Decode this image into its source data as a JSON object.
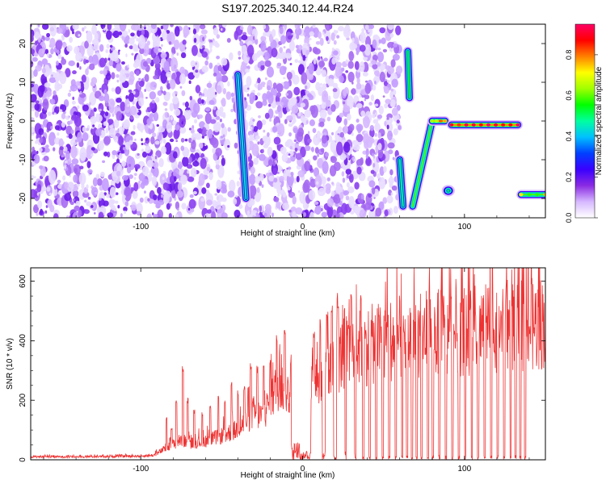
{
  "figure_title": "S197.2025.340.12.44.R24",
  "chart_data": [
    {
      "type": "heatmap",
      "title": "S197.2025.340.12.44.R24",
      "xlabel": "Height of straight line (km)",
      "ylabel": "Frequency (Hz)",
      "xlim": [
        -168,
        150
      ],
      "ylim": [
        -25,
        25
      ],
      "x_ticks": [
        -100,
        0,
        100
      ],
      "y_ticks": [
        -20,
        -10,
        0,
        10,
        20
      ],
      "colorbar": {
        "label": "Normalized spectral amplitude",
        "range": [
          0,
          0.95
        ],
        "ticks": [
          0.0,
          0.2,
          0.4,
          0.6,
          0.8
        ],
        "colors": [
          "#ffffff",
          "#d6b8ff",
          "#8a2be2",
          "#3a00ff",
          "#0040ff",
          "#00c0ff",
          "#00ffa0",
          "#00ff00",
          "#a0ff00",
          "#ffff00",
          "#ff8000",
          "#ff0000",
          "#ff0066"
        ]
      },
      "noise_region_x": [
        -168,
        60
      ],
      "features": [
        {
          "kind": "streak",
          "x": [
            -40,
            -35
          ],
          "y": [
            12,
            -20
          ],
          "amplitude": 0.25
        },
        {
          "kind": "streak",
          "x": [
            60,
            62
          ],
          "y": [
            -10,
            -22
          ],
          "amplitude": 0.3
        },
        {
          "kind": "streak",
          "x": [
            65,
            66
          ],
          "y": [
            18,
            6
          ],
          "amplitude": 0.35
        },
        {
          "kind": "streak",
          "x": [
            68,
            80
          ],
          "y": [
            -22,
            0
          ],
          "amplitude": 0.4
        },
        {
          "kind": "band",
          "x": [
            80,
            88
          ],
          "y": [
            0,
            0
          ],
          "amplitude": 0.45
        },
        {
          "kind": "blob",
          "x": [
            90,
            90
          ],
          "y": [
            -18,
            -18
          ],
          "amplitude": 0.35
        },
        {
          "kind": "band",
          "x": [
            92,
            133
          ],
          "y": [
            -1,
            -1
          ],
          "amplitude": 0.6
        },
        {
          "kind": "band",
          "x": [
            135,
            150
          ],
          "y": [
            -19,
            -19
          ],
          "amplitude": 0.4
        }
      ]
    },
    {
      "type": "line",
      "xlabel": "Height of straight line (km)",
      "ylabel": "SNR (10 * v/v)",
      "xlim": [
        -168,
        150
      ],
      "ylim": [
        0,
        645
      ],
      "x_ticks": [
        -100,
        0,
        100
      ],
      "y_ticks": [
        0,
        200,
        400,
        600
      ],
      "series": [
        {
          "color": "#ee3333",
          "envelope_x": [
            -168,
            -140,
            -100,
            -92,
            -86,
            -80,
            -75,
            -70,
            -60,
            -50,
            -40,
            -30,
            -25,
            -20,
            -15,
            -12,
            -8,
            -5,
            -2,
            0,
            5,
            10,
            20,
            25,
            30,
            40,
            50,
            60,
            70,
            80,
            90,
            100,
            110,
            120,
            130,
            140,
            150
          ],
          "envelope_y": [
            12,
            12,
            15,
            18,
            40,
            60,
            80,
            65,
            75,
            95,
            120,
            190,
            170,
            230,
            300,
            280,
            260,
            200,
            170,
            230,
            300,
            300,
            380,
            420,
            430,
            450,
            470,
            480,
            490,
            500,
            500,
            510,
            515,
            525,
            530,
            530,
            545
          ],
          "spike_x": [
            -84,
            -81,
            -78,
            -74,
            -71,
            -67,
            -62,
            -57,
            -52,
            -48,
            -44,
            -40,
            -36,
            -32,
            -28,
            -24,
            -20,
            -16,
            -11,
            -7,
            -3,
            3,
            7,
            11,
            15,
            18,
            22,
            26,
            30,
            33,
            36
          ],
          "spike_y": [
            150,
            110,
            200,
            315,
            210,
            170,
            160,
            190,
            220,
            210,
            270,
            240,
            250,
            330,
            320,
            320,
            360,
            430,
            470,
            360,
            300,
            350,
            430,
            480,
            500,
            520,
            540,
            550,
            600,
            590,
            590
          ],
          "dropouts": [
            {
              "x": [
                -7,
                -1
              ],
              "y": 60
            },
            {
              "x": [
                -1,
                5
              ],
              "y": 30
            },
            {
              "x": [
                12,
                14
              ],
              "y": 30
            },
            {
              "x": [
                19,
                21
              ],
              "y": 30
            },
            {
              "x": [
                26,
                27
              ],
              "y": 30
            },
            {
              "x": [
                32,
                33
              ],
              "y": 30
            },
            {
              "x": [
                37,
                38
              ],
              "y": 15
            },
            {
              "x": [
                41,
                42
              ],
              "y": 15
            },
            {
              "x": [
                45,
                46
              ],
              "y": 15
            },
            {
              "x": [
                49,
                50
              ],
              "y": 15
            },
            {
              "x": [
                53,
                54
              ],
              "y": 15
            },
            {
              "x": [
                57,
                58
              ],
              "y": 15
            },
            {
              "x": [
                61,
                62
              ],
              "y": 15
            },
            {
              "x": [
                64,
                65
              ],
              "y": 15
            },
            {
              "x": [
                67,
                68
              ],
              "y": 15
            },
            {
              "x": [
                70,
                71
              ],
              "y": 15
            },
            {
              "x": [
                73,
                74
              ],
              "y": 15
            },
            {
              "x": [
                77,
                78
              ],
              "y": 15
            },
            {
              "x": [
                80,
                81
              ],
              "y": 15
            },
            {
              "x": [
                84,
                85
              ],
              "y": 15
            },
            {
              "x": [
                88,
                89
              ],
              "y": 15
            },
            {
              "x": [
                92,
                93
              ],
              "y": 15
            },
            {
              "x": [
                96,
                97
              ],
              "y": 15
            },
            {
              "x": [
                100,
                101
              ],
              "y": 15
            },
            {
              "x": [
                104,
                105
              ],
              "y": 15
            },
            {
              "x": [
                108,
                109
              ],
              "y": 15
            },
            {
              "x": [
                112,
                113
              ],
              "y": 15
            },
            {
              "x": [
                116,
                117
              ],
              "y": 15
            },
            {
              "x": [
                120,
                121
              ],
              "y": 15
            },
            {
              "x": [
                124,
                125
              ],
              "y": 15
            },
            {
              "x": [
                128,
                129
              ],
              "y": 15
            },
            {
              "x": [
                131,
                132
              ],
              "y": 15
            },
            {
              "x": [
                134,
                135
              ],
              "y": 15
            },
            {
              "x": [
                137,
                138
              ],
              "y": 15
            }
          ]
        }
      ]
    }
  ]
}
